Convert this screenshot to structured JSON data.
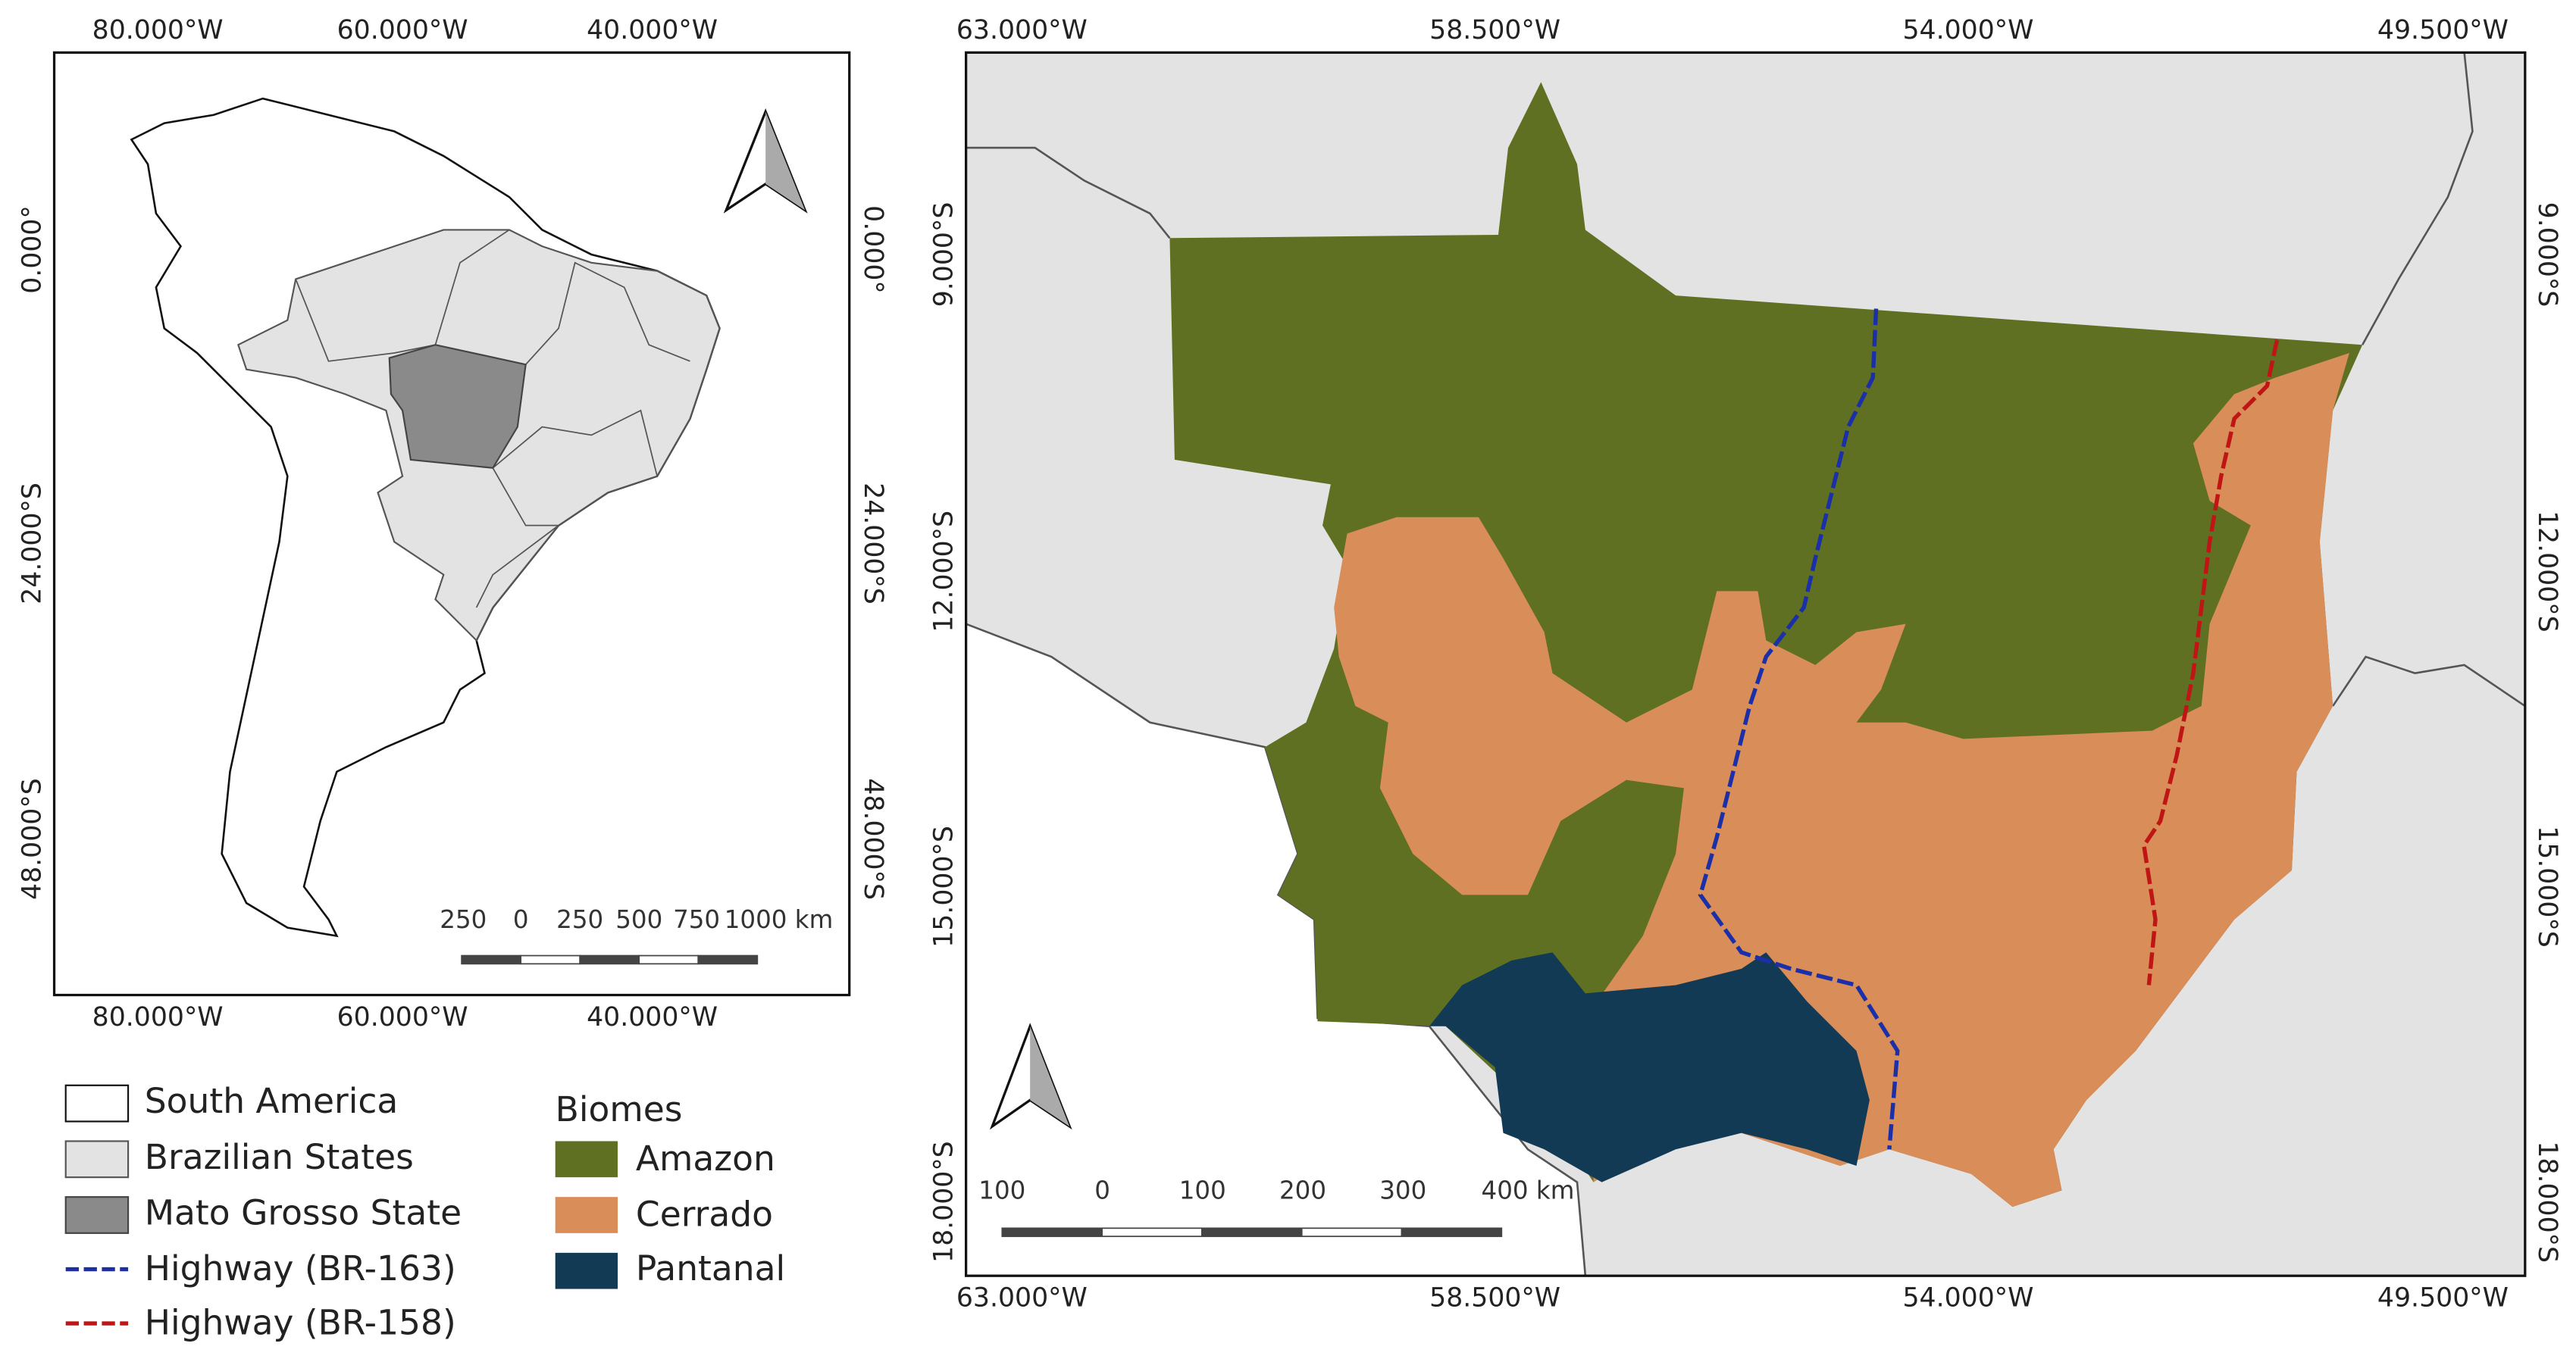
{
  "left_map": {
    "top_labels": [
      "80.000°W",
      "60.000°W",
      "40.000°W"
    ],
    "bottom_labels": [
      "80.000°W",
      "60.000°W",
      "40.000°W"
    ],
    "left_labels": [
      "0.000°",
      "24.000°S",
      "48.000°S"
    ],
    "right_labels": [
      "0.000°",
      "24.000°S",
      "48.000°S"
    ],
    "scale_labels": [
      "250",
      "0",
      "250",
      "500",
      "750",
      "1000 km"
    ]
  },
  "right_map": {
    "top_labels": [
      "63.000°W",
      "58.500°W",
      "54.000°W",
      "49.500°W"
    ],
    "bottom_labels": [
      "63.000°W",
      "58.500°W",
      "54.000°W",
      "49.500°W"
    ],
    "left_labels": [
      "9.000°S",
      "12.000°S",
      "15.000°S",
      "18.000°S"
    ],
    "right_labels": [
      "9.000°S",
      "12.000°S",
      "15.000°S",
      "18.000°S"
    ],
    "scale_labels": [
      "100",
      "0",
      "100",
      "200",
      "300",
      "400 km"
    ]
  },
  "legend": {
    "items": [
      "South America",
      "Brazilian States",
      "Mato Grosso State",
      "Highway (BR-163)",
      "Highway (BR-158)"
    ],
    "biomes_title": "Biomes",
    "biomes": [
      "Amazon",
      "Cerrado",
      "Pantanal"
    ]
  }
}
